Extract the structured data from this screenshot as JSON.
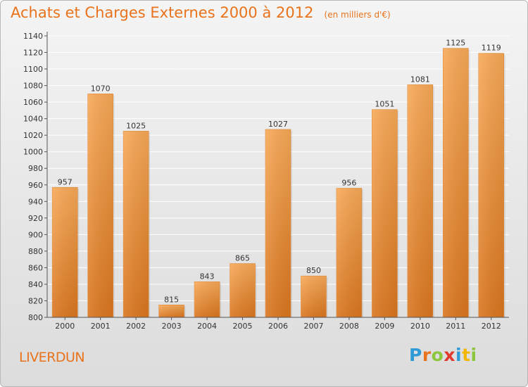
{
  "title": "Achats et Charges Externes 2000 à 2012",
  "subtitle": "(en milliers d'€)",
  "commune": "LIVERDUN",
  "brand": "Proxiti",
  "brand_letters": [
    {
      "ch": "P",
      "color": "#2f9bd6"
    },
    {
      "ch": "r",
      "color": "#e8731c"
    },
    {
      "ch": "o",
      "color": "#8cc63f"
    },
    {
      "ch": "x",
      "color": "#e03a2f"
    },
    {
      "ch": "i",
      "color": "#2f9bd6"
    },
    {
      "ch": "t",
      "color": "#f2b705"
    },
    {
      "ch": "i",
      "color": "#8cc63f"
    }
  ],
  "colors": {
    "accent": "#e8731c",
    "bar_light": "#f6a652",
    "bar_dark": "#d9751f",
    "grid": "#ffffff",
    "axis": "#555555"
  },
  "chart_data": {
    "type": "bar",
    "categories": [
      "2000",
      "2001",
      "2002",
      "2003",
      "2004",
      "2005",
      "2006",
      "2007",
      "2008",
      "2009",
      "2010",
      "2011",
      "2012"
    ],
    "values": [
      957,
      1070,
      1025,
      815,
      843,
      865,
      1027,
      850,
      956,
      1051,
      1081,
      1125,
      1119
    ],
    "y_ticks": [
      800,
      820,
      840,
      860,
      880,
      900,
      920,
      940,
      960,
      980,
      1000,
      1020,
      1040,
      1060,
      1080,
      1100,
      1120,
      1140
    ],
    "ylim": [
      800,
      1140
    ],
    "grid": true,
    "legend": "none"
  }
}
